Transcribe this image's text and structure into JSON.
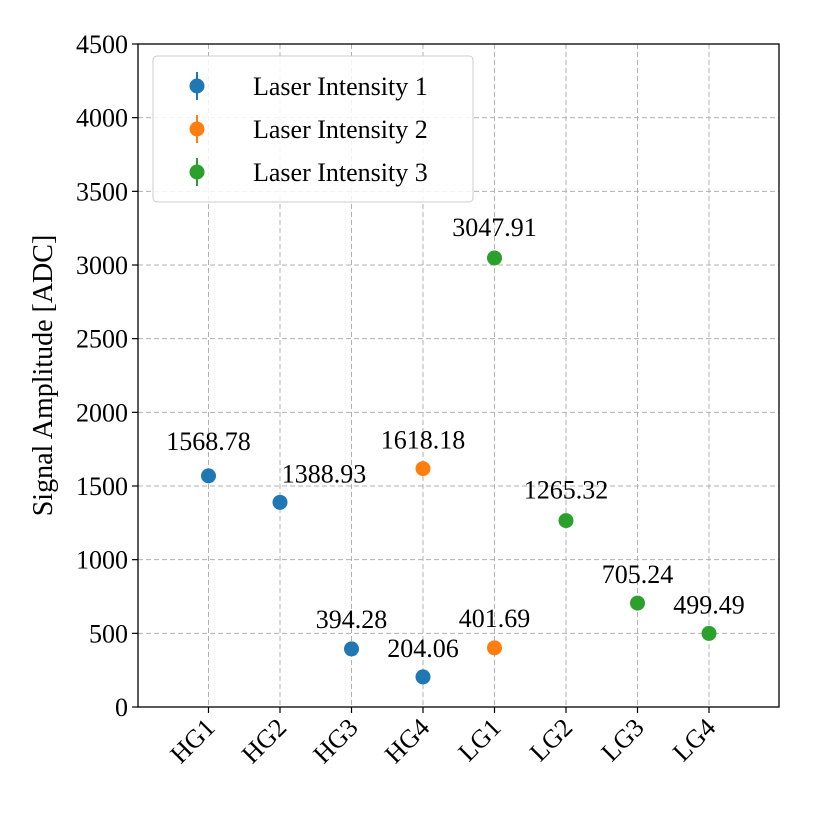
{
  "chart_data": {
    "type": "scatter",
    "title": "",
    "xlabel": "",
    "ylabel": "Signal Amplitude [ADC]",
    "categories": [
      "HG1",
      "HG2",
      "HG3",
      "HG4",
      "LG1",
      "LG2",
      "LG3",
      "LG4"
    ],
    "ylim": [
      0,
      4500
    ],
    "yticks": [
      0,
      500,
      1000,
      1500,
      2000,
      2500,
      3000,
      3500,
      4000,
      4500
    ],
    "ytick_labels": [
      "0",
      "500",
      "1000",
      "1500",
      "2000",
      "2500",
      "3000",
      "3500",
      "4000",
      "4500"
    ],
    "grid": true,
    "legend_position": "top-left",
    "series": [
      {
        "name": "Laser Intensity 1",
        "color": "#1f77b4",
        "points": [
          {
            "category": "HG1",
            "value": 1568.78,
            "label": "1568.78"
          },
          {
            "category": "HG2",
            "value": 1388.93,
            "label": "1388.93"
          },
          {
            "category": "HG3",
            "value": 394.28,
            "label": "394.28"
          },
          {
            "category": "HG4",
            "value": 204.06,
            "label": "204.06"
          }
        ]
      },
      {
        "name": "Laser Intensity 2",
        "color": "#ff7f0e",
        "points": [
          {
            "category": "HG4",
            "value": 1618.18,
            "label": "1618.18"
          },
          {
            "category": "LG1",
            "value": 401.69,
            "label": "401.69"
          }
        ]
      },
      {
        "name": "Laser Intensity 3",
        "color": "#2ca02c",
        "points": [
          {
            "category": "LG1",
            "value": 3047.91,
            "label": "3047.91"
          },
          {
            "category": "LG2",
            "value": 1265.32,
            "label": "1265.32"
          },
          {
            "category": "LG3",
            "value": 705.24,
            "label": "705.24"
          },
          {
            "category": "LG4",
            "value": 499.49,
            "label": "499.49"
          }
        ]
      }
    ]
  }
}
